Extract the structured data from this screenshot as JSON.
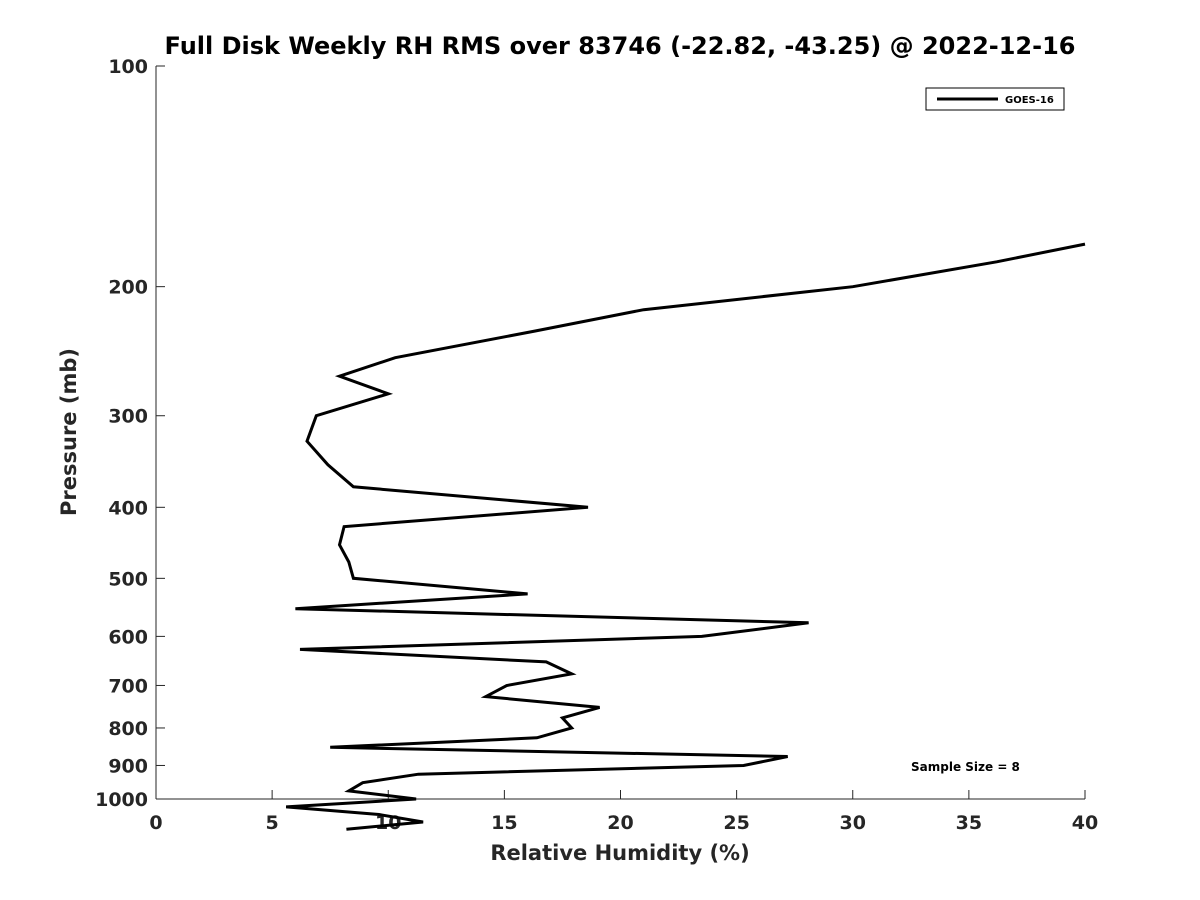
{
  "chart_data": {
    "type": "line",
    "title": "Full Disk Weekly RH RMS over 83746 (-22.82, -43.25) @ 2022-12-16",
    "xlabel": "Relative Humidity (%)",
    "ylabel": "Pressure (mb)",
    "xlim": [
      0,
      40
    ],
    "ylim": [
      1000,
      100
    ],
    "yscale": "log",
    "y_reversed": true,
    "grid": false,
    "legend_position": "top-right",
    "x_ticks": [
      "0",
      "5",
      "10",
      "15",
      "20",
      "25",
      "30",
      "35",
      "40"
    ],
    "y_ticks": [
      "100",
      "200",
      "300",
      "400",
      "500",
      "600",
      "700",
      "800",
      "900",
      "1000"
    ],
    "annotation": "Sample Size = 8",
    "series": [
      {
        "name": "GOES-16",
        "color": "#000000",
        "points": [
          [
            40.0,
            175
          ],
          [
            36.2,
            185
          ],
          [
            30.0,
            200
          ],
          [
            21.0,
            215
          ],
          [
            16.3,
            230
          ],
          [
            10.3,
            250
          ],
          [
            7.9,
            265
          ],
          [
            10.0,
            280
          ],
          [
            6.9,
            300
          ],
          [
            6.5,
            325
          ],
          [
            7.4,
            350
          ],
          [
            8.5,
            375
          ],
          [
            18.6,
            400
          ],
          [
            8.1,
            425
          ],
          [
            7.9,
            450
          ],
          [
            8.3,
            475
          ],
          [
            8.5,
            500
          ],
          [
            16.0,
            525
          ],
          [
            6.0,
            550
          ],
          [
            28.1,
            575
          ],
          [
            23.5,
            600
          ],
          [
            6.2,
            625
          ],
          [
            16.8,
            650
          ],
          [
            17.9,
            675
          ],
          [
            15.1,
            700
          ],
          [
            14.2,
            725
          ],
          [
            19.1,
            750
          ],
          [
            17.5,
            775
          ],
          [
            17.9,
            800
          ],
          [
            16.4,
            825
          ],
          [
            7.5,
            850
          ],
          [
            27.2,
            875
          ],
          [
            25.3,
            900
          ],
          [
            11.3,
            925
          ],
          [
            8.9,
            950
          ],
          [
            8.3,
            975
          ],
          [
            11.2,
            1000
          ],
          [
            5.6,
            1025
          ],
          [
            9.6,
            1050
          ],
          [
            11.5,
            1075
          ],
          [
            8.2,
            1100
          ]
        ]
      }
    ]
  }
}
